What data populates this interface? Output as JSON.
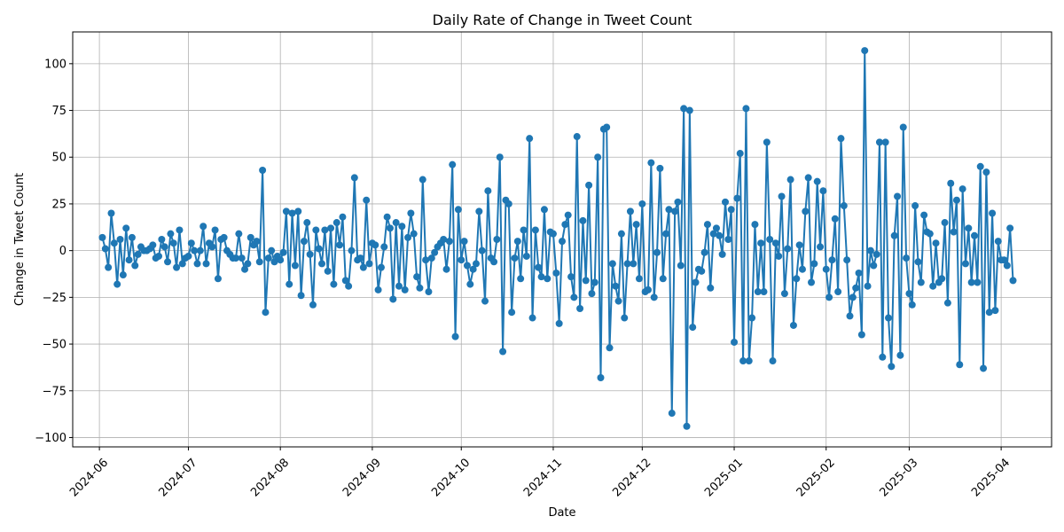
{
  "chart_data": {
    "type": "line",
    "title": "Daily Rate of Change in Tweet Count",
    "xlabel": "Date",
    "ylabel": "Change in Tweet Count",
    "xlim": [
      "2024-05-23",
      "2025-04-18"
    ],
    "ylim": [
      -105,
      117
    ],
    "x_ticks": [
      "2024-06-01",
      "2024-07-01",
      "2024-08-01",
      "2024-09-01",
      "2024-10-01",
      "2024-11-01",
      "2024-12-01",
      "2025-01-01",
      "2025-02-01",
      "2025-03-01",
      "2025-04-01"
    ],
    "x_tick_labels": [
      "2024-06",
      "2024-07",
      "2024-08",
      "2024-09",
      "2024-10",
      "2024-11",
      "2024-12",
      "2025-01",
      "2025-02",
      "2025-03",
      "2025-04"
    ],
    "y_ticks": [
      -100,
      -75,
      -50,
      -25,
      0,
      25,
      50,
      75,
      100
    ],
    "y_tick_labels": [
      "−100",
      "−75",
      "−50",
      "−25",
      "0",
      "25",
      "50",
      "75",
      "100"
    ],
    "grid": true,
    "color": "#1f77b4",
    "series": [
      {
        "marker": "circle",
        "x_start": "2024-06-02",
        "x_step": "1 day",
        "values": [
          7,
          1,
          -9,
          20,
          4,
          -18,
          6,
          -13,
          12,
          -5,
          7,
          -8,
          -2,
          2,
          0,
          0,
          1,
          3,
          -4,
          -3,
          6,
          2,
          -6,
          9,
          4,
          -9,
          11,
          -7,
          -4,
          -3,
          4,
          0,
          -7,
          0,
          13,
          -7,
          4,
          2,
          11,
          -15,
          6,
          7,
          0,
          -2,
          -4,
          -4,
          9,
          -4,
          -10,
          -7,
          7,
          3,
          5,
          -6,
          43,
          -33,
          -4,
          0,
          -6,
          -3,
          -5,
          -1,
          21,
          -18,
          20,
          -8,
          21,
          -24,
          5,
          15,
          -2,
          -29,
          11,
          1,
          -7,
          11,
          -11,
          12,
          -18,
          15,
          3,
          18,
          -16,
          -19,
          0,
          39,
          -5,
          -4,
          -9,
          27,
          -7,
          4,
          3,
          -21,
          -9,
          2,
          18,
          12,
          -26,
          15,
          -19,
          13,
          -21,
          7,
          20,
          9,
          -14,
          -20,
          38,
          -5,
          -22,
          -4,
          -1,
          2,
          4,
          6,
          -10,
          5,
          46,
          -46,
          22,
          -5,
          5,
          -8,
          -18,
          -10,
          -7,
          21,
          0,
          -27,
          32,
          -4,
          -6,
          6,
          50,
          -54,
          27,
          25,
          -33,
          -4,
          5,
          -15,
          11,
          -3,
          60,
          -36,
          11,
          -9,
          -14,
          22,
          -15,
          10,
          9,
          -12,
          -39,
          5,
          14,
          19,
          -14,
          -25,
          61,
          -31,
          16,
          -16,
          35,
          -23,
          -17,
          50,
          -68,
          65,
          66,
          -52,
          -7,
          -19,
          -27,
          9,
          -36,
          -7,
          21,
          -7,
          14,
          -15,
          25,
          -22,
          -21,
          47,
          -25,
          -1,
          44,
          -15,
          9,
          22,
          -87,
          21,
          26,
          -8,
          76,
          -94,
          75,
          -41,
          -17,
          -10,
          -11,
          -1,
          14,
          -20,
          9,
          12,
          8,
          -2,
          26,
          6,
          22,
          -49,
          28,
          52,
          -59,
          76,
          -59,
          -36,
          14,
          -22,
          4,
          -22,
          58,
          6,
          -59,
          4,
          -3,
          29,
          -23,
          1,
          38,
          -40,
          -15,
          3,
          -10,
          21,
          39,
          -17,
          -7,
          37,
          2,
          32,
          -10,
          -25,
          -5,
          17,
          -22,
          60,
          24,
          -5,
          -35,
          -25,
          -20,
          -12,
          -45,
          107,
          -19,
          0,
          -8,
          -2,
          58,
          -57,
          58,
          -36,
          -62,
          8,
          29,
          -56,
          66,
          -4,
          -23,
          -29,
          24,
          -6,
          -17,
          19,
          10,
          9,
          -19,
          4,
          -17,
          -15,
          15,
          -28,
          36,
          10,
          27,
          -61,
          33,
          -7,
          12,
          -17,
          8,
          -17,
          45,
          -63,
          42,
          -33,
          20,
          -32,
          5,
          -5,
          -5,
          -8,
          12,
          -16
        ]
      }
    ]
  }
}
